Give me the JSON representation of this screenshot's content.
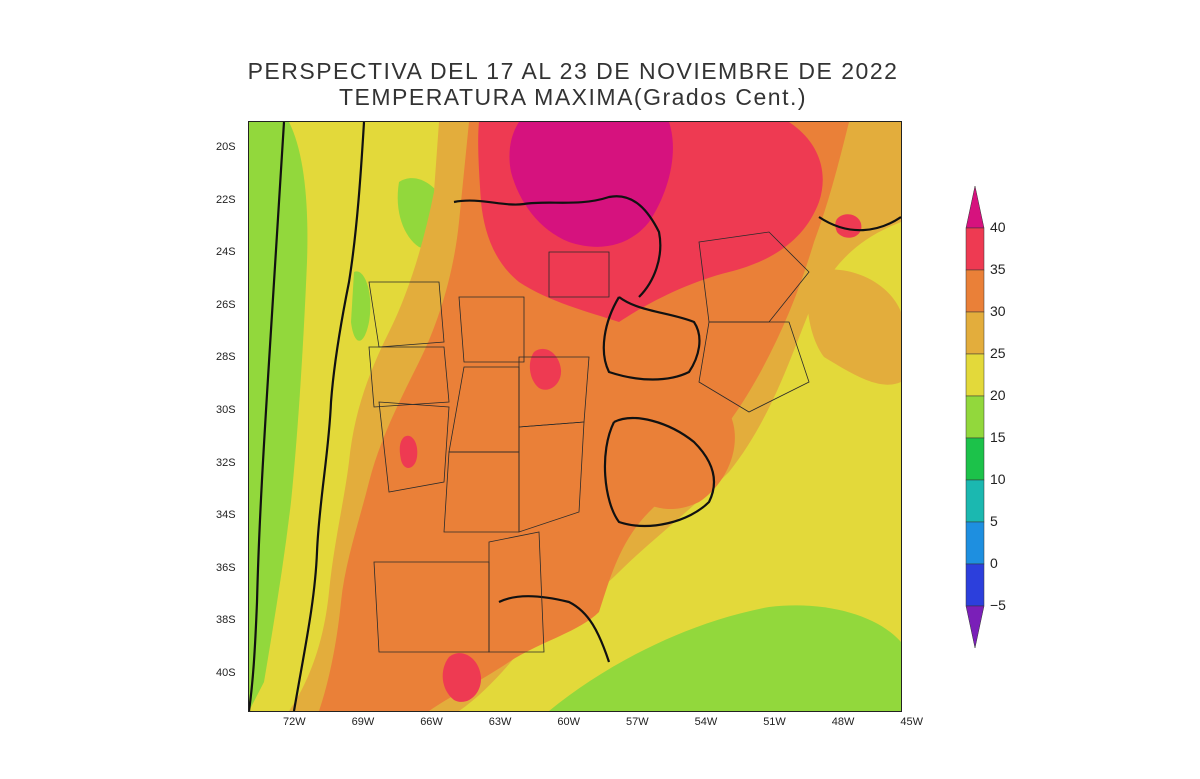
{
  "title": {
    "line1": "PERSPECTIVA DEL 17 AL 23 DE NOVIEMBRE DE 2022",
    "line2": "TEMPERATURA MAXIMA(Grados Cent.)"
  },
  "map": {
    "projection": "lat-lon",
    "lon_range": [
      -73.5,
      -45
    ],
    "lat_range": [
      -41.5,
      -19
    ],
    "lat_ticks": [
      "20S",
      "22S",
      "24S",
      "26S",
      "28S",
      "30S",
      "32S",
      "34S",
      "36S",
      "38S",
      "40S"
    ],
    "lon_ticks": [
      "72W",
      "69W",
      "66W",
      "63W",
      "60W",
      "57W",
      "54W",
      "51W",
      "48W",
      "45W"
    ]
  },
  "colorbar": {
    "labels": [
      "40",
      "35",
      "30",
      "25",
      "20",
      "15",
      "10",
      "5",
      "0",
      "−5"
    ],
    "bins": [
      {
        "range": [
          40,
          99
        ],
        "color": "#d6127e"
      },
      {
        "range": [
          35,
          40
        ],
        "color": "#ee3a52"
      },
      {
        "range": [
          30,
          35
        ],
        "color": "#ea8038"
      },
      {
        "range": [
          25,
          30
        ],
        "color": "#e3ad3c"
      },
      {
        "range": [
          20,
          25
        ],
        "color": "#e3d93a"
      },
      {
        "range": [
          15,
          20
        ],
        "color": "#92d83c"
      },
      {
        "range": [
          10,
          15
        ],
        "color": "#1cc24a"
      },
      {
        "range": [
          5,
          10
        ],
        "color": "#1bb8b0"
      },
      {
        "range": [
          0,
          5
        ],
        "color": "#1e8fe0"
      },
      {
        "range": [
          -5,
          0
        ],
        "color": "#2c3fdc"
      },
      {
        "range": [
          -99,
          -5
        ],
        "color": "#7a1fb8"
      }
    ]
  }
}
